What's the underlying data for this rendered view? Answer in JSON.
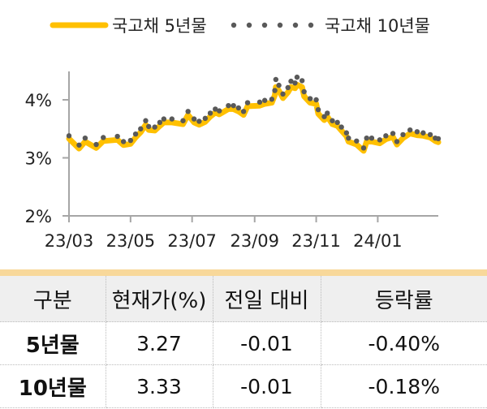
{
  "chart_data": {
    "type": "line",
    "title": "",
    "xlabel": "",
    "ylabel": "",
    "ylim": [
      2,
      4.5
    ],
    "yticks": [
      "2%",
      "3%",
      "4%"
    ],
    "ytick_values": [
      2,
      3,
      4
    ],
    "xticks": [
      "23/03",
      "23/05",
      "23/07",
      "23/09",
      "23/11",
      "24/01"
    ],
    "xtick_dates": [
      "2023-03-01",
      "2023-05-01",
      "2023-07-01",
      "2023-09-01",
      "2023-11-01",
      "2024-01-01"
    ],
    "xlim": [
      "2023-03-01",
      "2024-03-01"
    ],
    "grid": false,
    "legend_position": "top",
    "x": [
      "2023-03-01",
      "2023-03-11",
      "2023-03-17",
      "2023-03-28",
      "2023-04-04",
      "2023-04-18",
      "2023-04-24",
      "2023-05-01",
      "2023-05-06",
      "2023-05-11",
      "2023-05-16",
      "2023-05-19",
      "2023-05-25",
      "2023-05-30",
      "2023-06-03",
      "2023-06-11",
      "2023-06-22",
      "2023-06-27",
      "2023-07-03",
      "2023-07-08",
      "2023-07-14",
      "2023-07-19",
      "2023-07-24",
      "2023-07-28",
      "2023-08-06",
      "2023-08-11",
      "2023-08-16",
      "2023-08-21",
      "2023-08-25",
      "2023-09-06",
      "2023-09-11",
      "2023-09-18",
      "2023-09-21",
      "2023-09-22",
      "2023-09-25",
      "2023-09-29",
      "2023-10-04",
      "2023-10-07",
      "2023-10-11",
      "2023-10-13",
      "2023-10-18",
      "2023-10-20",
      "2023-10-26",
      "2023-11-01",
      "2023-11-03",
      "2023-11-09",
      "2023-11-12",
      "2023-11-17",
      "2023-11-22",
      "2023-11-26",
      "2023-12-01",
      "2023-12-03",
      "2023-12-11",
      "2023-12-18",
      "2023-12-21",
      "2023-12-26",
      "2024-01-03",
      "2024-01-09",
      "2024-01-16",
      "2024-01-20",
      "2024-01-26",
      "2024-02-02",
      "2024-02-09",
      "2024-02-15",
      "2024-02-22",
      "2024-02-27",
      "2024-03-01"
    ],
    "series": [
      {
        "name": "국고채 5년물",
        "style": "line",
        "color": "#ffc000",
        "values": [
          3.33,
          3.16,
          3.28,
          3.17,
          3.29,
          3.31,
          3.22,
          3.24,
          3.35,
          3.44,
          3.57,
          3.48,
          3.47,
          3.55,
          3.61,
          3.61,
          3.58,
          3.74,
          3.61,
          3.57,
          3.62,
          3.71,
          3.78,
          3.75,
          3.84,
          3.84,
          3.8,
          3.74,
          3.89,
          3.9,
          3.93,
          3.95,
          4.08,
          4.22,
          4.16,
          4.03,
          4.13,
          4.22,
          4.2,
          4.26,
          4.22,
          4.06,
          3.95,
          3.93,
          3.76,
          3.65,
          3.71,
          3.58,
          3.55,
          3.47,
          3.37,
          3.28,
          3.23,
          3.12,
          3.28,
          3.28,
          3.25,
          3.32,
          3.36,
          3.23,
          3.34,
          3.42,
          3.39,
          3.38,
          3.35,
          3.29,
          3.27
        ]
      },
      {
        "name": "국고채 10년물",
        "style": "dots",
        "color": "#595959",
        "values": [
          3.38,
          3.22,
          3.34,
          3.23,
          3.35,
          3.37,
          3.28,
          3.3,
          3.41,
          3.5,
          3.64,
          3.54,
          3.53,
          3.61,
          3.67,
          3.67,
          3.64,
          3.8,
          3.67,
          3.63,
          3.68,
          3.77,
          3.84,
          3.81,
          3.9,
          3.9,
          3.86,
          3.8,
          3.95,
          3.96,
          3.99,
          4.01,
          4.16,
          4.35,
          4.25,
          4.1,
          4.21,
          4.32,
          4.29,
          4.39,
          4.33,
          4.14,
          4.02,
          4.0,
          3.83,
          3.71,
          3.77,
          3.64,
          3.61,
          3.53,
          3.43,
          3.34,
          3.29,
          3.17,
          3.34,
          3.34,
          3.31,
          3.38,
          3.42,
          3.28,
          3.4,
          3.48,
          3.45,
          3.43,
          3.4,
          3.34,
          3.33
        ]
      }
    ]
  },
  "table": {
    "headers": [
      "구분",
      "현재가(%)",
      "전일 대비",
      "등락률"
    ],
    "rows": [
      [
        "5년물",
        "3.27",
        "-0.01",
        "-0.40%"
      ],
      [
        "10년물",
        "3.33",
        "-0.01",
        "-0.18%"
      ]
    ],
    "accent_color": "#f8d89a",
    "header_bg": "#efefef"
  }
}
